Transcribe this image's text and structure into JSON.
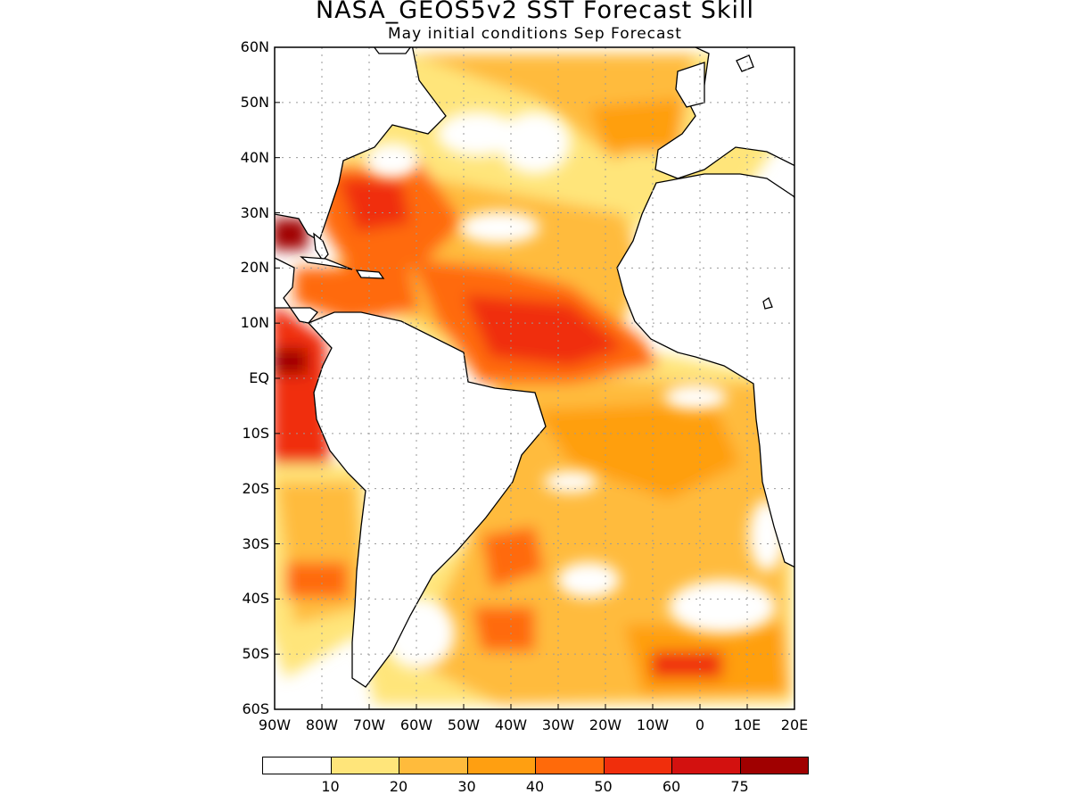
{
  "title": "NASA_GEOS5v2 SST Forecast Skill",
  "subtitle": "May initial conditions  Sep Forecast",
  "map": {
    "lon_range": [
      -90,
      20
    ],
    "lat_range": [
      -60,
      60
    ],
    "grid": "dotted",
    "lat_labels": [
      {
        "lat": 60,
        "text": "60N"
      },
      {
        "lat": 50,
        "text": "50N"
      },
      {
        "lat": 40,
        "text": "40N"
      },
      {
        "lat": 30,
        "text": "30N"
      },
      {
        "lat": 20,
        "text": "20N"
      },
      {
        "lat": 10,
        "text": "10N"
      },
      {
        "lat": 0,
        "text": "EQ"
      },
      {
        "lat": -10,
        "text": "10S"
      },
      {
        "lat": -20,
        "text": "20S"
      },
      {
        "lat": -30,
        "text": "30S"
      },
      {
        "lat": -40,
        "text": "40S"
      },
      {
        "lat": -50,
        "text": "50S"
      },
      {
        "lat": -60,
        "text": "60S"
      }
    ],
    "lon_labels": [
      {
        "lon": -90,
        "text": "90W"
      },
      {
        "lon": -80,
        "text": "80W"
      },
      {
        "lon": -70,
        "text": "70W"
      },
      {
        "lon": -60,
        "text": "60W"
      },
      {
        "lon": -50,
        "text": "50W"
      },
      {
        "lon": -40,
        "text": "40W"
      },
      {
        "lon": -30,
        "text": "30W"
      },
      {
        "lon": -20,
        "text": "20W"
      },
      {
        "lon": -10,
        "text": "10W"
      },
      {
        "lon": 0,
        "text": "0"
      },
      {
        "lon": 10,
        "text": "10E"
      },
      {
        "lon": 20,
        "text": "20E"
      }
    ]
  },
  "colorbar": {
    "colors": [
      "#ffffff",
      "#ffe57a",
      "#ffbb3c",
      "#ff9f11",
      "#ff6a0a",
      "#f02e0c",
      "#d3110f",
      "#a00000"
    ],
    "labels": [
      "10",
      "20",
      "30",
      "40",
      "50",
      "60",
      "75"
    ]
  }
}
